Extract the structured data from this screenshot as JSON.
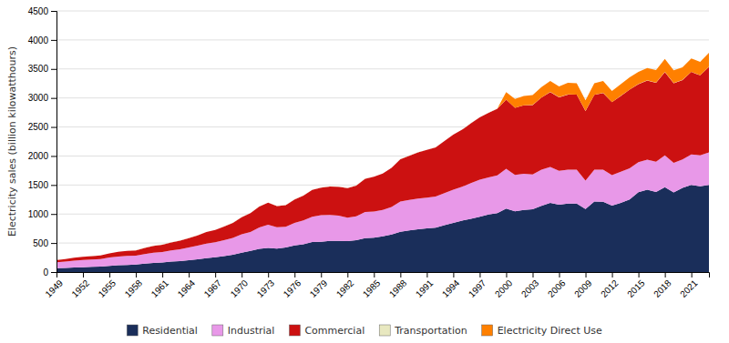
{
  "chart_data": {
    "type": "area",
    "stacked": true,
    "ylabel": "Electricity sales (billion kilowatthours)",
    "x": [
      1949,
      1950,
      1951,
      1952,
      1953,
      1954,
      1955,
      1956,
      1957,
      1958,
      1959,
      1960,
      1961,
      1962,
      1963,
      1964,
      1965,
      1966,
      1967,
      1968,
      1969,
      1970,
      1971,
      1972,
      1973,
      1974,
      1975,
      1976,
      1977,
      1978,
      1979,
      1980,
      1981,
      1982,
      1983,
      1984,
      1985,
      1986,
      1987,
      1988,
      1989,
      1990,
      1991,
      1992,
      1993,
      1994,
      1995,
      1996,
      1997,
      1998,
      1999,
      2000,
      2001,
      2002,
      2003,
      2004,
      2005,
      2006,
      2007,
      2008,
      2009,
      2010,
      2011,
      2012,
      2013,
      2014,
      2015,
      2016,
      2017,
      2018,
      2019,
      2020,
      2021,
      2022,
      2023
    ],
    "xlim": [
      1949,
      2023
    ],
    "xticks": [
      1949,
      1952,
      1955,
      1958,
      1961,
      1964,
      1967,
      1970,
      1973,
      1976,
      1979,
      1982,
      1985,
      1988,
      1991,
      1994,
      1997,
      2000,
      2003,
      2006,
      2009,
      2012,
      2015,
      2018,
      2021
    ],
    "ylim": [
      0,
      4500
    ],
    "yticks": [
      0,
      500,
      1000,
      1500,
      2000,
      2500,
      3000,
      3500,
      4000,
      4500
    ],
    "grid": true,
    "legend": "bottom",
    "series": [
      {
        "name": "Residential",
        "color": "#1a2e5a",
        "values": [
          68,
          72,
          79,
          84,
          89,
          95,
          107,
          116,
          123,
          130,
          144,
          157,
          165,
          179,
          190,
          204,
          220,
          239,
          253,
          274,
          297,
          334,
          363,
          400,
          416,
          403,
          423,
          457,
          479,
          517,
          523,
          537,
          537,
          535,
          548,
          583,
          593,
          617,
          646,
          695,
          717,
          736,
          752,
          765,
          806,
          845,
          886,
          919,
          954,
          991,
          1016,
          1092,
          1046,
          1070,
          1082,
          1141,
          1192,
          1162,
          1180,
          1178,
          1084,
          1214,
          1213,
          1144,
          1190,
          1249,
          1375,
          1419,
          1379,
          1463,
          1371,
          1452,
          1500,
          1476,
          1501
        ]
      },
      {
        "name": "Industrial",
        "color": "#e898e8",
        "values": [
          100,
          107,
          117,
          123,
          128,
          127,
          142,
          151,
          155,
          151,
          166,
          177,
          180,
          193,
          202,
          218,
          234,
          252,
          260,
          276,
          291,
          316,
          328,
          368,
          399,
          370,
          357,
          390,
          409,
          435,
          457,
          447,
          434,
          403,
          413,
          452,
          451,
          452,
          475,
          520,
          525,
          529,
          529,
          535,
          553,
          574,
          583,
          612,
          636,
          639,
          649,
          686,
          627,
          624,
          601,
          622,
          619,
          584,
          584,
          584,
          493,
          550,
          552,
          527,
          537,
          540,
          518,
          519,
          521,
          549,
          509,
          490,
          527,
          534,
          560
        ]
      },
      {
        "name": "Commercial",
        "color": "#cc1111",
        "values": [
          40,
          44,
          50,
          54,
          58,
          63,
          72,
          80,
          86,
          92,
          106,
          117,
          126,
          138,
          150,
          163,
          178,
          197,
          211,
          235,
          259,
          296,
          323,
          361,
          379,
          365,
          374,
          405,
          430,
          463,
          476,
          491,
          499,
          510,
          530,
          574,
          598,
          628,
          674,
          730,
          762,
          797,
          823,
          850,
          898,
          947,
          983,
          1034,
          1074,
          1114,
          1151,
          1192,
          1157,
          1178,
          1195,
          1243,
          1290,
          1266,
          1295,
          1295,
          1200,
          1288,
          1321,
          1256,
          1308,
          1354,
          1346,
          1363,
          1362,
          1435,
          1374,
          1367,
          1421,
          1380,
          1475
        ]
      },
      {
        "name": "Transportation",
        "color": "#e8e8c0",
        "values": [
          2,
          2,
          2,
          2,
          2,
          2,
          2,
          2,
          2,
          2,
          2,
          2,
          2,
          2,
          2,
          2,
          2,
          2,
          2,
          2,
          2,
          2,
          2,
          2,
          2,
          2,
          2,
          2,
          2,
          2,
          2,
          2,
          2,
          2,
          2,
          2,
          2,
          2,
          2,
          2,
          2,
          2,
          2,
          2,
          2,
          2,
          2,
          2,
          2,
          2,
          2,
          2,
          2,
          2,
          2,
          2,
          2,
          2,
          2,
          2,
          2,
          2,
          2,
          2,
          2,
          2,
          2,
          2,
          2,
          2,
          2,
          2,
          2,
          2,
          2
        ]
      },
      {
        "name": "Electricity Direct Use",
        "color": "#ff8000",
        "values": [
          0,
          0,
          0,
          0,
          0,
          0,
          0,
          0,
          0,
          0,
          0,
          0,
          0,
          0,
          0,
          0,
          0,
          0,
          0,
          0,
          0,
          0,
          0,
          0,
          0,
          0,
          0,
          0,
          0,
          0,
          0,
          0,
          0,
          0,
          0,
          0,
          0,
          0,
          0,
          0,
          0,
          0,
          0,
          0,
          0,
          0,
          0,
          0,
          0,
          0,
          0,
          130,
          150,
          160,
          170,
          180,
          190,
          185,
          200,
          195,
          180,
          200,
          205,
          190,
          200,
          210,
          210,
          215,
          215,
          225,
          220,
          215,
          230,
          230,
          240
        ]
      }
    ]
  }
}
